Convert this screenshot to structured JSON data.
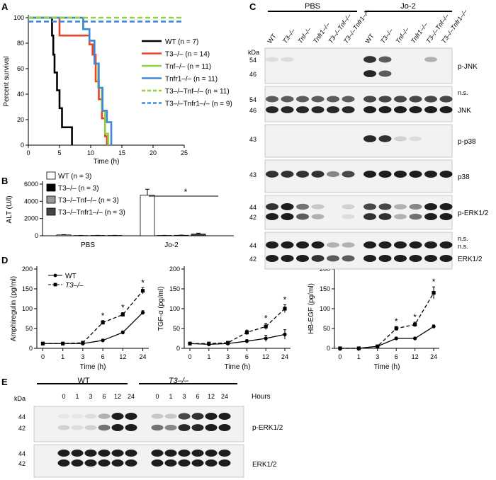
{
  "panels": {
    "A": "A",
    "B": "B",
    "C": "C",
    "D": "D",
    "E": "E"
  },
  "colors": {
    "wt": "#000000",
    "t3": "#e8442a",
    "tnf": "#8fd13f",
    "tnfr1": "#3f88d8",
    "blot_bg": "#f2f2f2",
    "band": "#111111"
  },
  "chart_data": [
    {
      "id": "A",
      "type": "line",
      "step": true,
      "xlabel": "Time (h)",
      "ylabel": "Percent survival",
      "xlim": [
        0,
        25
      ],
      "ylim": [
        0,
        100
      ],
      "xticks": [
        0,
        5,
        10,
        15,
        20,
        25
      ],
      "yticks": [
        0,
        20,
        40,
        60,
        80,
        100
      ],
      "legend_position": "right",
      "series": [
        {
          "name": "WT",
          "n": "(n = 7)",
          "color": "#000000",
          "dashed": false,
          "x": [
            0,
            3.8,
            4.0,
            4.2,
            4.6,
            5.0,
            5.4,
            6.2,
            7.0
          ],
          "y": [
            100,
            86,
            71,
            57,
            43,
            29,
            14,
            14,
            0
          ]
        },
        {
          "name": "T3–/–",
          "n": "(n = 14)",
          "color": "#e8442a",
          "dashed": false,
          "x": [
            0,
            5.0,
            6.2,
            9.8,
            10.3,
            10.8,
            11.3,
            11.8,
            12.3,
            12.6
          ],
          "y": [
            100,
            86,
            86,
            79,
            71,
            50,
            36,
            21,
            7,
            0
          ]
        },
        {
          "name": "Tnf–/–",
          "n": "(n = 11)",
          "color": "#8fd13f",
          "dashed": false,
          "x": [
            0,
            8.8,
            9.8,
            10.6,
            11.2,
            11.8,
            12.3,
            12.8
          ],
          "y": [
            100,
            91,
            82,
            64,
            45,
            27,
            9,
            0
          ]
        },
        {
          "name": "Tnfr1–/–",
          "n": "(n = 11)",
          "color": "#3f88d8",
          "dashed": false,
          "x": [
            0,
            8.8,
            9.8,
            10.6,
            11.3,
            11.9,
            12.6,
            13.3
          ],
          "y": [
            100,
            91,
            82,
            64,
            45,
            27,
            18,
            0
          ]
        },
        {
          "name": "T3–/–Tnf–/–",
          "n": "(n = 11)",
          "color": "#8fd13f",
          "dashed": true,
          "x": [
            0,
            25
          ],
          "y": [
            100,
            100
          ]
        },
        {
          "name": "T3–/–Tnfr1–/–",
          "n": "(n = 9)",
          "color": "#3f88d8",
          "dashed": true,
          "x": [
            0,
            25
          ],
          "y": [
            97,
            97
          ]
        }
      ]
    },
    {
      "id": "B",
      "type": "bar",
      "ylabel": "ALT (U/l)",
      "ylim": [
        0,
        6000
      ],
      "yticks": [
        0,
        2000,
        4000,
        6000
      ],
      "categories": [
        "PBS",
        "Jo-2"
      ],
      "significance": "*",
      "legend_position": "top-left",
      "series": [
        {
          "name": "WT",
          "n": "(n = 3)",
          "fill": "#ffffff",
          "values": [
            100,
            4700
          ],
          "err": [
            30,
            700
          ]
        },
        {
          "name": "T3–/–",
          "n": "(n = 3)",
          "fill": "#000000",
          "values": [
            30,
            40
          ],
          "err": [
            10,
            10
          ]
        },
        {
          "name": "T3–/–Tnf–/–",
          "n": "(n = 3)",
          "fill": "#999999",
          "values": [
            40,
            60
          ],
          "err": [
            10,
            20
          ]
        },
        {
          "name": "T3–/–Tnfr1–/–",
          "n": "(n = 3)",
          "fill": "#444444",
          "values": [
            40,
            200
          ],
          "err": [
            10,
            100
          ]
        }
      ]
    },
    {
      "id": "D1",
      "type": "line",
      "xlabel": "Time (h)",
      "ylabel": "Amphiregulin (pg/ml)",
      "categories": [
        "0",
        "1",
        "3",
        "6",
        "12",
        "24"
      ],
      "ylim": [
        0,
        200
      ],
      "yticks": [
        0,
        50,
        100,
        150,
        200
      ],
      "legend_position": "top-left",
      "series": [
        {
          "name": "WT",
          "dashed": false,
          "marker": "circle",
          "values": [
            12,
            12,
            12,
            20,
            40,
            90
          ],
          "err": [
            3,
            3,
            3,
            3,
            4,
            5
          ]
        },
        {
          "name": "T3–/–",
          "dashed": true,
          "marker": "square",
          "values": [
            12,
            12,
            14,
            65,
            85,
            145
          ],
          "err": [
            3,
            3,
            3,
            5,
            5,
            8
          ]
        }
      ],
      "stars_at": [
        3,
        4,
        5
      ],
      "star": "*"
    },
    {
      "id": "D2",
      "type": "line",
      "xlabel": "Time (h)",
      "ylabel": "TGF-α (pg/ml)",
      "categories": [
        "0",
        "1",
        "3",
        "6",
        "12",
        "24"
      ],
      "ylim": [
        0,
        200
      ],
      "yticks": [
        0,
        50,
        100,
        150,
        200
      ],
      "series": [
        {
          "name": "WT",
          "dashed": false,
          "marker": "circle",
          "values": [
            12,
            10,
            12,
            18,
            25,
            35
          ],
          "err": [
            3,
            3,
            3,
            4,
            8,
            12
          ]
        },
        {
          "name": "T3–/–",
          "dashed": true,
          "marker": "square",
          "values": [
            12,
            12,
            14,
            40,
            55,
            100
          ],
          "err": [
            3,
            3,
            3,
            6,
            8,
            10
          ]
        }
      ],
      "stars_at": [
        4,
        5
      ],
      "star": "*"
    },
    {
      "id": "D3",
      "type": "line",
      "xlabel": "Time (h)",
      "ylabel": "HB-EGF (pg/ml)",
      "categories": [
        "0",
        "1",
        "3",
        "6",
        "12",
        "24"
      ],
      "ylim": [
        0,
        200
      ],
      "yticks": [
        0,
        50,
        100,
        150,
        200
      ],
      "series": [
        {
          "name": "WT",
          "dashed": false,
          "marker": "circle",
          "values": [
            0,
            0,
            5,
            25,
            25,
            55
          ],
          "err": [
            1,
            1,
            2,
            3,
            3,
            4
          ]
        },
        {
          "name": "T3–/–",
          "dashed": true,
          "marker": "square",
          "values": [
            0,
            0,
            5,
            50,
            60,
            140
          ],
          "err": [
            1,
            1,
            2,
            5,
            6,
            15
          ]
        }
      ],
      "stars_at": [
        3,
        4,
        5
      ],
      "star": "*"
    }
  ],
  "blotC": {
    "groups": [
      "PBS",
      "Jo-2"
    ],
    "lanes": [
      "WT",
      "T3–/–",
      "Tnf–/–",
      "Tnfr1–/–",
      "T3–/–Tnf–/–",
      "T3–/–Tnfr1–/–",
      "WT",
      "T3–/–",
      "Tnf–/–",
      "Tnfr1–/–",
      "T3–/–Tnf–/–",
      "T3–/–Tnfr1–/–"
    ],
    "kda_header": "kDa",
    "rows": [
      {
        "label": "p-JNK",
        "kda": [
          "54",
          "46"
        ],
        "extra": [],
        "bands": [
          [
            0.1,
            0.1,
            0,
            0,
            0,
            0,
            0.9,
            0.7,
            0,
            0,
            0.3,
            0
          ],
          [
            0,
            0,
            0,
            0,
            0,
            0,
            0.95,
            0.7,
            0,
            0,
            0,
            0
          ]
        ]
      },
      {
        "label": "JNK",
        "kda": [
          "54",
          "46"
        ],
        "extra": [
          "n.s."
        ],
        "bands": [
          [
            0.7,
            0.7,
            0.7,
            0.7,
            0.7,
            0.7,
            0.8,
            0.8,
            0.8,
            0.8,
            0.8,
            0.8
          ],
          [
            0.95,
            0.95,
            0.95,
            0.95,
            0.95,
            0.95,
            1,
            1,
            1,
            1,
            1,
            1
          ]
        ]
      },
      {
        "label": "p-p38",
        "kda": [
          "43"
        ],
        "extra": [],
        "bands": [
          [
            0,
            0,
            0,
            0,
            0,
            0,
            0.95,
            0.9,
            0.15,
            0.1,
            0,
            0
          ]
        ]
      },
      {
        "label": "p38",
        "kda": [
          "43"
        ],
        "extra": [],
        "bands": [
          [
            0.9,
            0.9,
            0.9,
            0.9,
            0.5,
            0.8,
            1,
            1,
            1,
            1,
            1,
            1
          ]
        ]
      },
      {
        "label": "p-ERK1/2",
        "kda": [
          "44",
          "42"
        ],
        "extra": [],
        "bands": [
          [
            0.9,
            1,
            0.6,
            0.2,
            0,
            0.15,
            0.8,
            0.8,
            0.3,
            0.5,
            1,
            1
          ],
          [
            1,
            1,
            0.7,
            0.3,
            0,
            0.1,
            0.9,
            0.9,
            0.3,
            0.6,
            1,
            1
          ]
        ]
      },
      {
        "label": "ERK1/2",
        "kda": [
          "44",
          "42"
        ],
        "extra": [
          "n.s.",
          "n.s."
        ],
        "bands": [
          [
            1,
            1,
            1,
            1,
            0.3,
            0.3,
            1,
            1,
            1,
            1,
            1,
            1
          ],
          [
            1,
            1,
            1,
            0.9,
            0.7,
            0.7,
            1,
            1,
            1,
            1,
            1,
            1
          ]
        ]
      }
    ]
  },
  "blotE": {
    "groups": [
      "WT",
      "T3–/–"
    ],
    "hours_label": "Hours",
    "timepoints": [
      "0",
      "1",
      "3",
      "6",
      "12",
      "24"
    ],
    "kda_header": "kDa",
    "rows": [
      {
        "label": "p-ERK1/2",
        "kda": [
          "44",
          "42"
        ],
        "bands": [
          [
            0.05,
            0.05,
            0.1,
            0.3,
            1,
            1,
            0.2,
            0.2,
            0.8,
            0.9,
            1,
            1
          ],
          [
            0.15,
            0.1,
            0.15,
            0.6,
            1,
            1,
            0.6,
            0.5,
            0.95,
            0.95,
            1,
            1
          ]
        ]
      },
      {
        "label": "ERK1/2",
        "kda": [
          "44",
          "42"
        ],
        "bands": [
          [
            1,
            1,
            1,
            1,
            1,
            1,
            1,
            1,
            1,
            1,
            1,
            1
          ],
          [
            1,
            1,
            1,
            1,
            1,
            1,
            1,
            1,
            1,
            1,
            1,
            1
          ]
        ]
      }
    ]
  }
}
